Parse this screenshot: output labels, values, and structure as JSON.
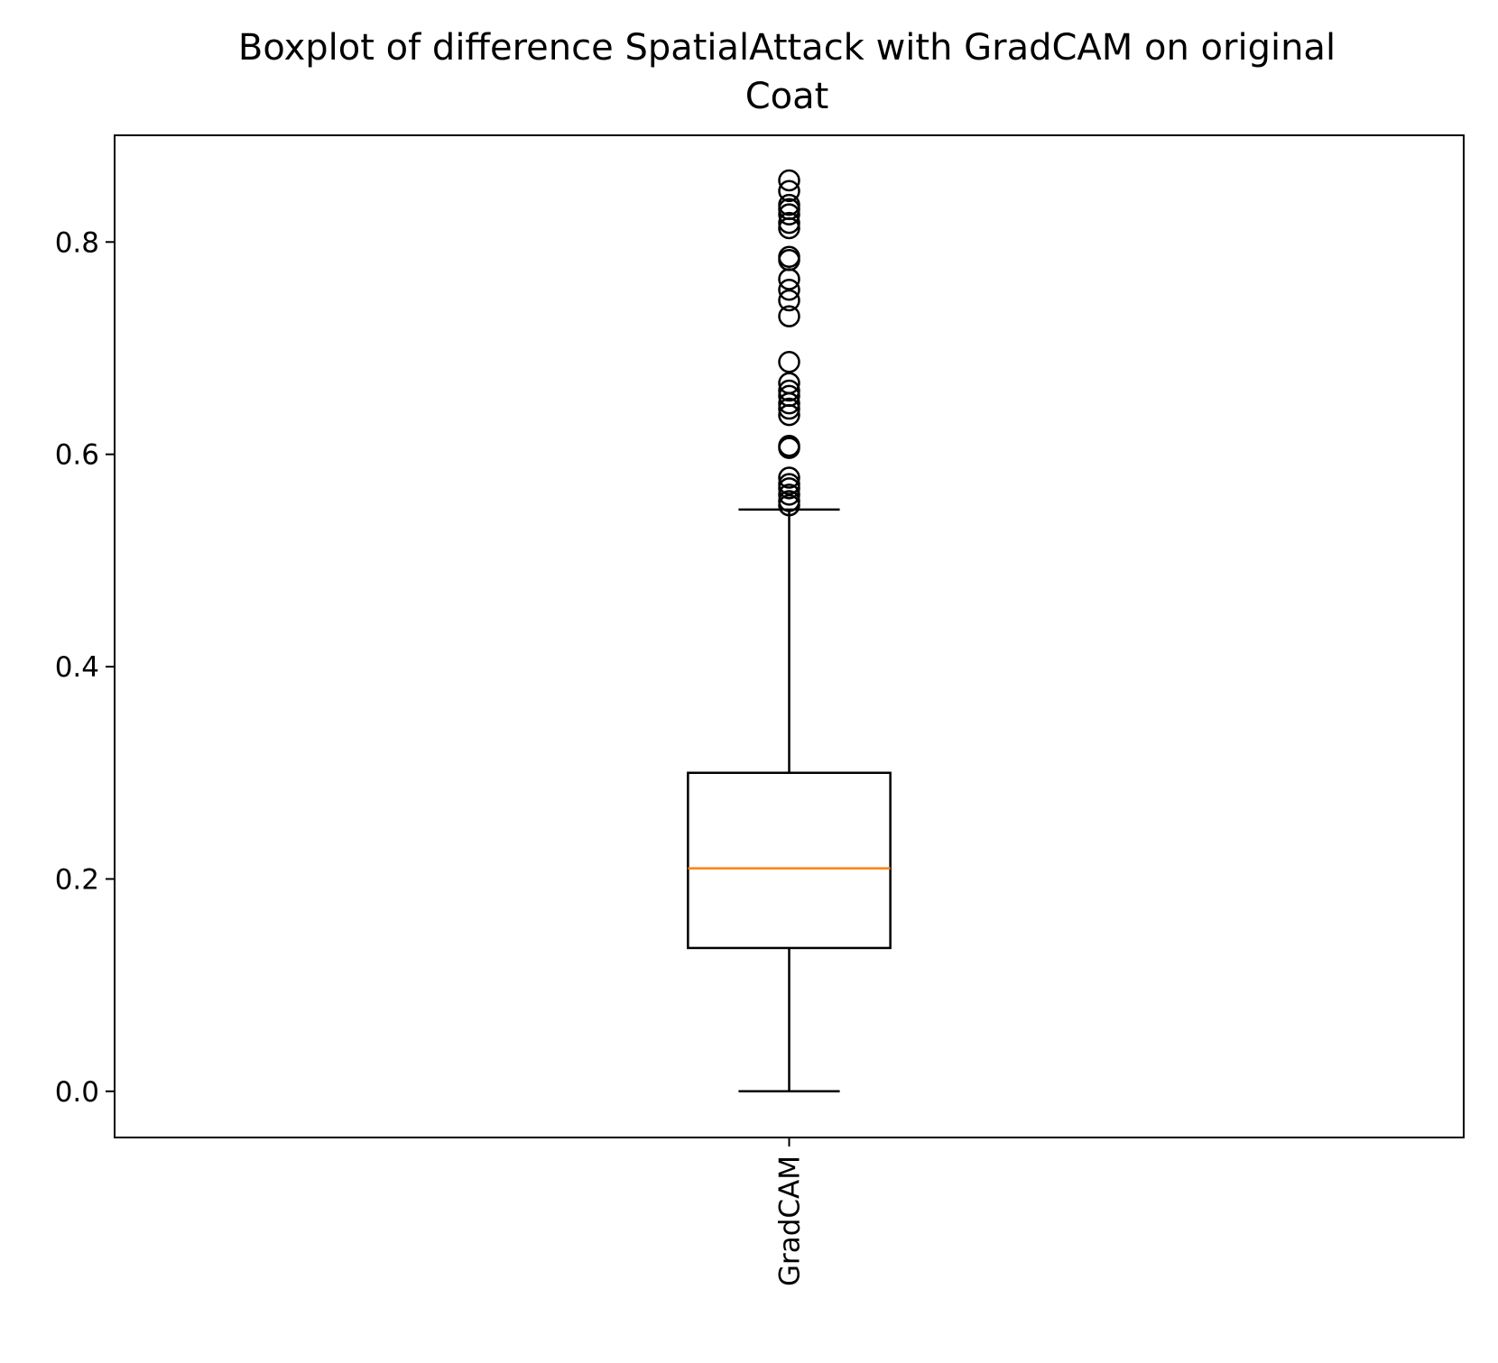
{
  "chart_data": {
    "type": "boxplot",
    "title_lines": [
      "Boxplot of difference SpatialAttack with GradCAM on original",
      "Coat"
    ],
    "xlabel": "",
    "ylabel": "",
    "ylim": [
      -0.0435,
      0.9005
    ],
    "yticks": [
      0.0,
      0.2,
      0.4,
      0.6,
      0.8
    ],
    "ytick_labels": [
      "0.0",
      "0.2",
      "0.4",
      "0.6",
      "0.8"
    ],
    "categories": [
      "GradCAM"
    ],
    "boxes": [
      {
        "label": "GradCAM",
        "whisker_low": 0.0,
        "q1": 0.135,
        "median": 0.21,
        "q3": 0.3,
        "whisker_high": 0.548,
        "outliers": [
          0.552,
          0.556,
          0.562,
          0.568,
          0.572,
          0.578,
          0.606,
          0.608,
          0.637,
          0.643,
          0.648,
          0.655,
          0.66,
          0.667,
          0.687,
          0.73,
          0.745,
          0.755,
          0.765,
          0.783,
          0.786,
          0.813,
          0.818,
          0.826,
          0.831,
          0.835,
          0.848,
          0.858
        ]
      }
    ],
    "colors": {
      "box": "#000000",
      "median": "#ff7f0e",
      "outlier": "#000000"
    },
    "grid": false,
    "legend": "none"
  }
}
